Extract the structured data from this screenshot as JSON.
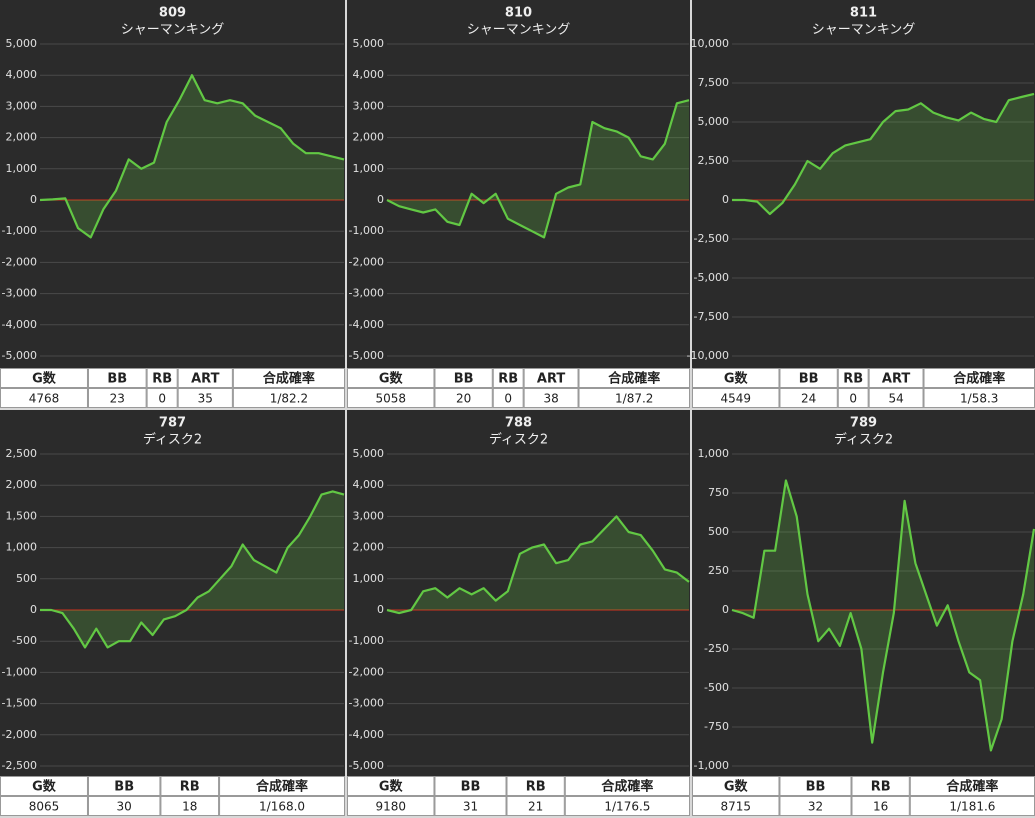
{
  "chart_data": [
    {
      "type": "line",
      "title": "809",
      "subtitle": "シャーマンキング",
      "ylim": [
        -5000,
        5000
      ],
      "yticks": [
        {
          "value": 5000,
          "label": "5,000"
        },
        {
          "value": 4000,
          "label": "4,000"
        },
        {
          "value": 3000,
          "label": "3,000"
        },
        {
          "value": 2000,
          "label": "2,000"
        },
        {
          "value": 1000,
          "label": "1,000"
        },
        0,
        {
          "value": -1000,
          "label": "-1,000"
        },
        {
          "value": -2000,
          "label": "-2,000"
        },
        {
          "value": -3000,
          "label": "-3,000"
        },
        {
          "value": -4000,
          "label": "-4,000"
        },
        {
          "value": -5000,
          "label": "-5,000"
        }
      ],
      "grid": true,
      "series": [
        {
          "color": "#62c844",
          "values": [
            0,
            20,
            50,
            -900,
            -1200,
            -300,
            300,
            1300,
            1000,
            1200,
            2500,
            3200,
            4000,
            3200,
            3100,
            3200,
            3100,
            2700,
            2500,
            2300,
            1800,
            1500,
            1500,
            1400,
            1300
          ]
        }
      ]
    },
    {
      "type": "line",
      "title": "810",
      "subtitle": "シャーマンキング",
      "ylim": [
        -5000,
        5000
      ],
      "yticks": [
        {
          "value": 5000,
          "label": "5,000"
        },
        {
          "value": 4000,
          "label": "4,000"
        },
        {
          "value": 3000,
          "label": "3,000"
        },
        {
          "value": 2000,
          "label": "2,000"
        },
        {
          "value": 1000,
          "label": "1,000"
        },
        0,
        {
          "value": -1000,
          "label": "-1,000"
        },
        {
          "value": -2000,
          "label": "-2,000"
        },
        {
          "value": -3000,
          "label": "-3,000"
        },
        {
          "value": -4000,
          "label": "-4,000"
        },
        {
          "value": -5000,
          "label": "-5,000"
        }
      ],
      "grid": true,
      "series": [
        {
          "color": "#62c844",
          "values": [
            0,
            -200,
            -300,
            -400,
            -300,
            -700,
            -800,
            200,
            -100,
            200,
            -600,
            -800,
            -1000,
            -1200,
            200,
            400,
            500,
            2500,
            2300,
            2200,
            2000,
            1400,
            1300,
            1800,
            3100,
            3200
          ]
        }
      ]
    },
    {
      "type": "line",
      "title": "811",
      "subtitle": "シャーマンキング",
      "ylim": [
        -10000,
        10000
      ],
      "yticks": [
        {
          "value": 10000,
          "label": "10,000"
        },
        {
          "value": 7500,
          "label": "7,500"
        },
        {
          "value": 5000,
          "label": "5,000"
        },
        {
          "value": 2500,
          "label": "2,500"
        },
        0,
        {
          "value": -2500,
          "label": "-2,500"
        },
        {
          "value": -5000,
          "label": "-5,000"
        },
        {
          "value": -7500,
          "label": "-7,500"
        },
        {
          "value": -10000,
          "label": "-10,000"
        }
      ],
      "grid": true,
      "series": [
        {
          "color": "#62c844",
          "values": [
            0,
            0,
            -100,
            -900,
            -200,
            1000,
            2500,
            2000,
            3000,
            3500,
            3700,
            3900,
            5000,
            5700,
            5800,
            6200,
            5600,
            5300,
            5100,
            5600,
            5200,
            5000,
            6400,
            6600,
            6800
          ]
        }
      ]
    },
    {
      "type": "line",
      "title": "787",
      "subtitle": "ディスク2",
      "ylim": [
        -2500,
        2500
      ],
      "yticks": [
        {
          "value": 2500,
          "label": "2,500"
        },
        {
          "value": 2000,
          "label": "2,000"
        },
        {
          "value": 1500,
          "label": "1,500"
        },
        {
          "value": 1000,
          "label": "1,000"
        },
        500,
        0,
        -500,
        {
          "value": -1000,
          "label": "-1,000"
        },
        {
          "value": -1500,
          "label": "-1,500"
        },
        {
          "value": -2000,
          "label": "-2,000"
        },
        {
          "value": -2500,
          "label": "-2,500"
        }
      ],
      "grid": true,
      "series": [
        {
          "color": "#62c844",
          "values": [
            0,
            0,
            -50,
            -300,
            -600,
            -300,
            -600,
            -500,
            -500,
            -200,
            -400,
            -150,
            -100,
            0,
            200,
            300,
            500,
            700,
            1050,
            800,
            700,
            600,
            1000,
            1200,
            1500,
            1850,
            1900,
            1850
          ]
        }
      ]
    },
    {
      "type": "line",
      "title": "788",
      "subtitle": "ディスク2",
      "ylim": [
        -5000,
        5000
      ],
      "yticks": [
        {
          "value": 5000,
          "label": "5,000"
        },
        {
          "value": 4000,
          "label": "4,000"
        },
        {
          "value": 3000,
          "label": "3,000"
        },
        {
          "value": 2000,
          "label": "2,000"
        },
        {
          "value": 1000,
          "label": "1,000"
        },
        0,
        {
          "value": -1000,
          "label": "-1,000"
        },
        {
          "value": -2000,
          "label": "-2,000"
        },
        {
          "value": -3000,
          "label": "-3,000"
        },
        {
          "value": -4000,
          "label": "-4,000"
        },
        {
          "value": -5000,
          "label": "-5,000"
        }
      ],
      "grid": true,
      "series": [
        {
          "color": "#62c844",
          "values": [
            0,
            -100,
            0,
            600,
            700,
            400,
            700,
            500,
            700,
            300,
            600,
            1800,
            2000,
            2100,
            1500,
            1600,
            2100,
            2200,
            2600,
            3000,
            2500,
            2400,
            1900,
            1300,
            1200,
            900
          ]
        }
      ]
    },
    {
      "type": "line",
      "title": "789",
      "subtitle": "ディスク2",
      "ylim": [
        -1000,
        1000
      ],
      "yticks": [
        {
          "value": 1000,
          "label": "1,000"
        },
        750,
        500,
        250,
        0,
        -250,
        -500,
        -750,
        {
          "value": -1000,
          "label": "-1,000"
        }
      ],
      "grid": true,
      "series": [
        {
          "color": "#62c844",
          "values": [
            0,
            -20,
            -50,
            380,
            380,
            830,
            600,
            100,
            -200,
            -120,
            -230,
            -20,
            -250,
            -850,
            -400,
            -20,
            700,
            300,
            100,
            -100,
            30,
            -200,
            -400,
            -450,
            -900,
            -700,
            -200,
            100,
            520
          ]
        }
      ]
    }
  ],
  "tables": [
    {
      "headers": [
        "G数",
        "BB",
        "RB",
        "ART",
        "合成確率"
      ],
      "rows": [
        [
          "4768",
          "23",
          "0",
          "35",
          "1/82.2"
        ]
      ]
    },
    {
      "headers": [
        "G数",
        "BB",
        "RB",
        "ART",
        "合成確率"
      ],
      "rows": [
        [
          "5058",
          "20",
          "0",
          "38",
          "1/87.2"
        ]
      ]
    },
    {
      "headers": [
        "G数",
        "BB",
        "RB",
        "ART",
        "合成確率"
      ],
      "rows": [
        [
          "4549",
          "24",
          "0",
          "54",
          "1/58.3"
        ]
      ]
    },
    {
      "headers": [
        "G数",
        "BB",
        "RB",
        "合成確率"
      ],
      "rows": [
        [
          "8065",
          "30",
          "18",
          "1/168.0"
        ]
      ]
    },
    {
      "headers": [
        "G数",
        "BB",
        "RB",
        "合成確率"
      ],
      "rows": [
        [
          "9180",
          "31",
          "21",
          "1/176.5"
        ]
      ]
    },
    {
      "headers": [
        "G数",
        "BB",
        "RB",
        "合成確率"
      ],
      "rows": [
        [
          "8715",
          "32",
          "16",
          "1/181.6"
        ]
      ]
    }
  ]
}
